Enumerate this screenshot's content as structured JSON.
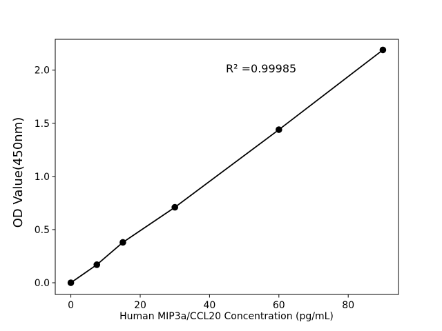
{
  "chart_data": {
    "type": "line",
    "title": "",
    "xlabel": "Human MIP3a/CCL20 Concentration (pg/mL)",
    "ylabel": "OD Value(450nm)",
    "annotation": "R² =0.99985",
    "x": [
      0,
      7.5,
      15,
      30,
      60,
      90
    ],
    "y": [
      0.0,
      0.17,
      0.38,
      0.71,
      1.44,
      2.19
    ],
    "xticks": [
      "0",
      "20",
      "40",
      "60",
      "80"
    ],
    "yticks": [
      "0.0",
      "0.5",
      "1.0",
      "1.5",
      "2.0"
    ],
    "xlim": [
      -4.5,
      94.5
    ],
    "ylim": [
      -0.11,
      2.29
    ],
    "grid": false,
    "legend": "none",
    "line_color": "#000000",
    "marker_color": "#000000",
    "axis_color": "#000000",
    "background_color": "#ffffff"
  }
}
